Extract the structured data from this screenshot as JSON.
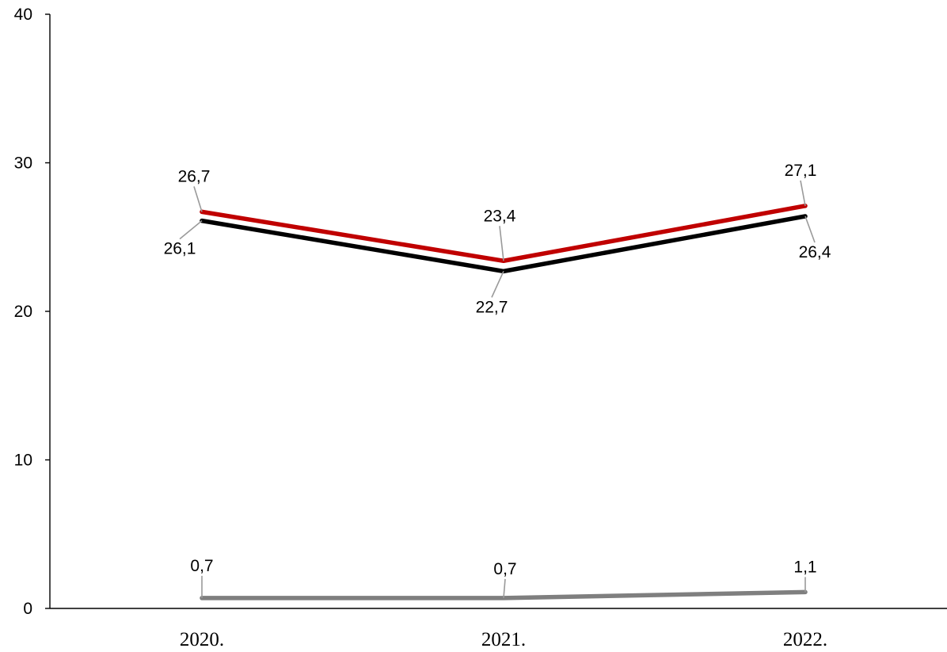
{
  "chart_data": {
    "type": "line",
    "categories": [
      "2020.",
      "2021.",
      "2022."
    ],
    "ylim": [
      0,
      40
    ],
    "yticks": [
      0,
      10,
      20,
      30,
      40
    ],
    "grid": false,
    "legend": "none",
    "series": [
      {
        "values": [
          26.7,
          23.4,
          27.1
        ],
        "labels": [
          "26,7",
          "23,4",
          "27,1"
        ],
        "color": "#c00000",
        "label_position": "above"
      },
      {
        "values": [
          26.1,
          22.7,
          26.4
        ],
        "labels": [
          "26,1",
          "22,7",
          "26,4"
        ],
        "color": "#000000",
        "label_position": "below"
      },
      {
        "values": [
          0.7,
          0.7,
          1.1
        ],
        "labels": [
          "0,7",
          "0,7",
          "1,1"
        ],
        "color": "#7f7f7f",
        "label_position": "above"
      }
    ]
  }
}
